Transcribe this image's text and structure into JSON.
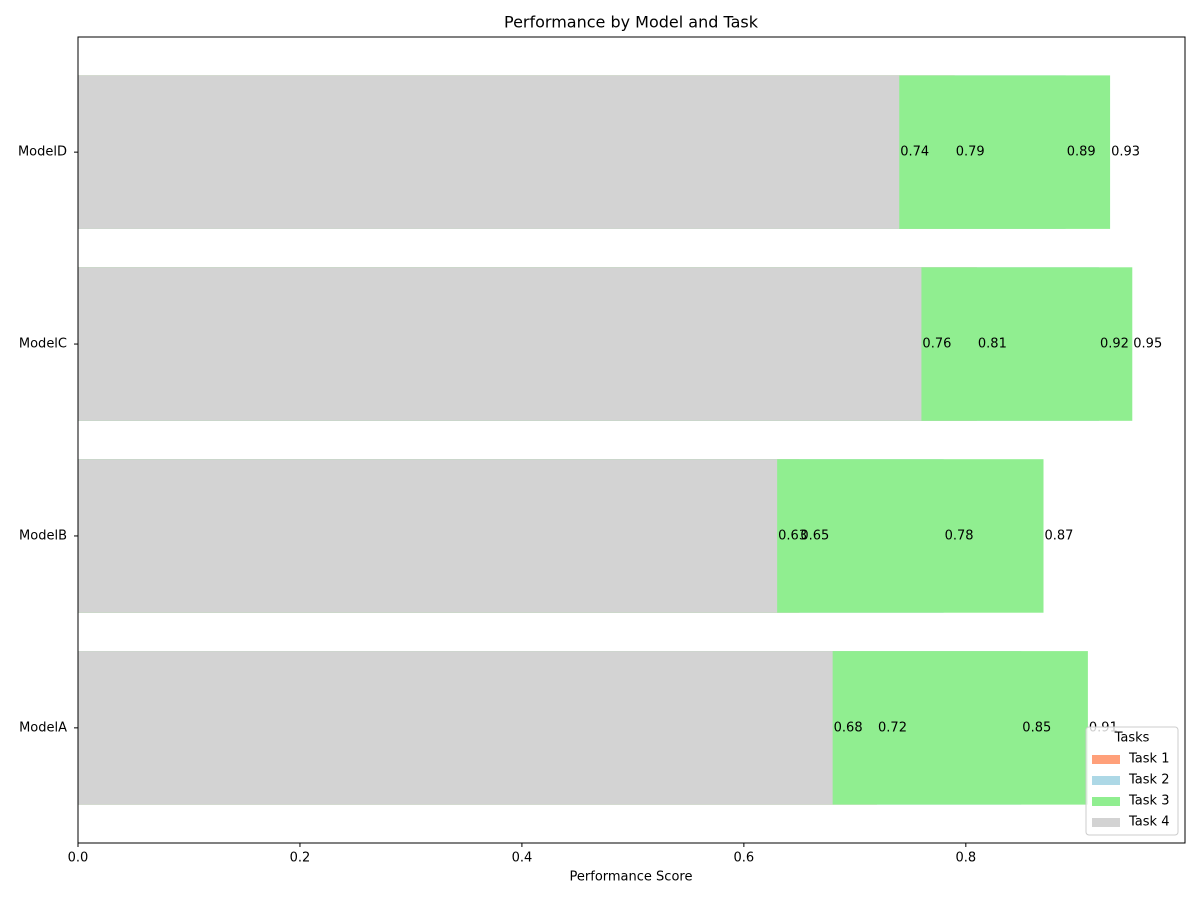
{
  "chart_data": {
    "type": "overlapping-bar",
    "title": "Performance by Model and Task",
    "xlabel": "Performance Score",
    "categories": [
      "ModelA",
      "ModelB",
      "ModelC",
      "ModelD"
    ],
    "series": [
      {
        "name": "Task 1",
        "color": "#ffa07a",
        "values": [
          0.72,
          0.65,
          0.81,
          0.79
        ]
      },
      {
        "name": "Task 2",
        "color": "#add8e6",
        "values": [
          0.85,
          0.78,
          0.92,
          0.89
        ]
      },
      {
        "name": "Task 3",
        "color": "#90ee90",
        "values": [
          0.91,
          0.87,
          0.95,
          0.93
        ]
      },
      {
        "name": "Task 4",
        "color": "#d3d3d3",
        "values": [
          0.68,
          0.63,
          0.76,
          0.74
        ]
      }
    ],
    "legend_title": "Tasks",
    "legend": "lower right",
    "xlim": [
      0,
      0.9975
    ],
    "xticks": [
      {
        "value": 0,
        "label": "0.0"
      },
      0.2,
      0.4,
      0.6,
      0.8
    ]
  }
}
